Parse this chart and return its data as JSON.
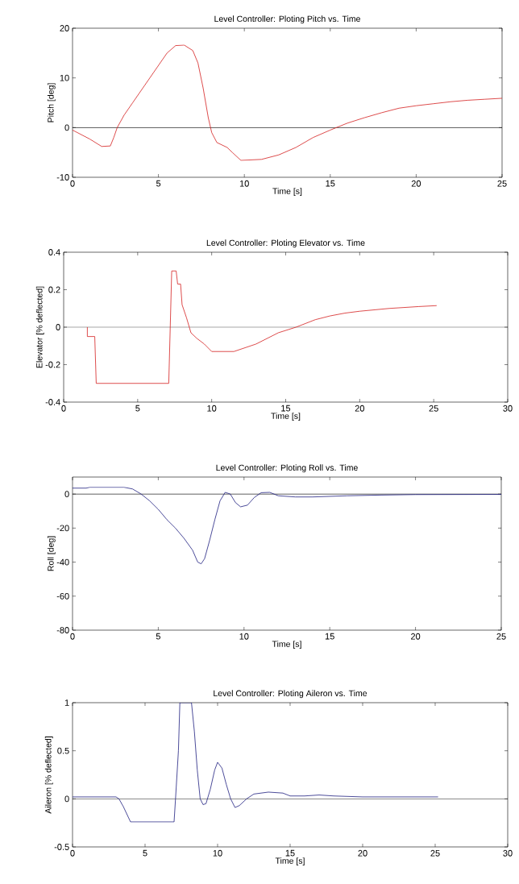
{
  "chart_data": [
    {
      "type": "line",
      "title": "Level Controller: Ploting Pitch vs. Time",
      "xlabel": "Time [s]",
      "ylabel": "Pitch [deg]",
      "xlim": [
        0,
        25
      ],
      "ylim": [
        -10,
        20
      ],
      "xticks": [
        0,
        5,
        10,
        15,
        20,
        25
      ],
      "yticks": [
        -10,
        0,
        10,
        20
      ],
      "grid": false,
      "x": [
        0,
        1,
        1.7,
        2.2,
        2.4,
        2.6,
        3,
        3.5,
        4,
        4.5,
        5,
        5.5,
        6,
        6.5,
        7,
        7.3,
        7.6,
        7.9,
        8.1,
        8.4,
        9,
        9.3,
        9.8,
        11,
        12,
        13,
        14,
        15,
        16,
        17,
        18,
        19,
        20,
        21,
        22,
        23,
        24,
        25
      ],
      "series": [
        {
          "color": "#d42020",
          "values": [
            -0.5,
            -2.3,
            -3.8,
            -3.7,
            -2,
            0,
            2.5,
            5,
            7.5,
            10,
            12.5,
            15,
            16.5,
            16.6,
            15.5,
            13,
            8,
            2,
            -1,
            -3,
            -4,
            -5,
            -6.6,
            -6.4,
            -5.5,
            -4,
            -2,
            -0.5,
            0.9,
            2,
            3,
            3.9,
            4.4,
            4.8,
            5.2,
            5.5,
            5.7,
            5.9
          ]
        }
      ],
      "ref_lines": [
        {
          "axis": "y",
          "value": 0,
          "color": "#000000"
        }
      ]
    },
    {
      "type": "line",
      "title": "Level Controller: Ploting Elevator vs. Time",
      "xlabel": "Time [s]",
      "ylabel": "Elevator [% deflected]",
      "xlim": [
        0,
        30
      ],
      "ylim": [
        -0.4,
        0.4
      ],
      "xticks": [
        0,
        5,
        10,
        15,
        20,
        25,
        30
      ],
      "yticks": [
        -0.4,
        -0.2,
        0,
        0.2,
        0.4
      ],
      "grid": false,
      "x": [
        1.6,
        1.6,
        2.1,
        2.2,
        7.1,
        7.2,
        7.3,
        7.6,
        7.7,
        7.9,
        8.0,
        8.3,
        8.6,
        9,
        9.5,
        10,
        11.5,
        13,
        14.5,
        15.7,
        17,
        18,
        19,
        20,
        22,
        24,
        25.2
      ],
      "series": [
        {
          "color": "#d42020",
          "values": [
            0,
            -0.05,
            -0.05,
            -0.3,
            -0.3,
            0,
            0.3,
            0.3,
            0.23,
            0.23,
            0.12,
            0.05,
            -0.03,
            -0.06,
            -0.09,
            -0.13,
            -0.13,
            -0.09,
            -0.03,
            0,
            0.04,
            0.06,
            0.075,
            0.085,
            0.1,
            0.11,
            0.115
          ]
        }
      ],
      "ref_lines": [
        {
          "axis": "y",
          "value": 0,
          "color": "#000000"
        }
      ]
    },
    {
      "type": "line",
      "title": "Level Controller: Ploting Roll vs. Time",
      "xlabel": "Time [s]",
      "ylabel": "Roll [deg]",
      "xlim": [
        0,
        25
      ],
      "ylim": [
        -80,
        10
      ],
      "xticks": [
        0,
        5,
        10,
        15,
        20,
        25
      ],
      "yticks": [
        -80,
        -60,
        -40,
        -20,
        0
      ],
      "grid": false,
      "x": [
        0,
        0.8,
        1,
        3,
        3.5,
        4,
        4.5,
        5,
        5.5,
        6,
        6.5,
        7,
        7.3,
        7.5,
        7.7,
        8,
        8.3,
        8.6,
        8.9,
        9.2,
        9.5,
        9.8,
        10.2,
        10.6,
        11,
        11.5,
        12,
        13,
        14,
        16,
        18,
        20,
        25
      ],
      "series": [
        {
          "color": "#202080",
          "values": [
            3.5,
            3.5,
            4,
            4,
            3,
            0,
            -4,
            -9,
            -15,
            -20,
            -26,
            -33,
            -40,
            -41,
            -38,
            -27,
            -15,
            -4,
            1,
            0,
            -5,
            -7.5,
            -6.5,
            -2,
            0.8,
            1,
            -1,
            -1.7,
            -1.7,
            -1,
            -0.6,
            -0.3,
            -0.2
          ]
        }
      ],
      "ref_lines": [
        {
          "axis": "y",
          "value": 0,
          "color": "#000000"
        }
      ]
    },
    {
      "type": "line",
      "title": "Level Controller: Ploting Aileron vs. Time",
      "xlabel": "Time [s]",
      "ylabel": "Aileron [% deflected]",
      "xlim": [
        0,
        30
      ],
      "ylim": [
        -0.5,
        1
      ],
      "xticks": [
        0,
        5,
        10,
        15,
        20,
        25,
        30
      ],
      "yticks": [
        -0.5,
        0,
        0.5,
        1
      ],
      "grid": false,
      "x": [
        0,
        3,
        3.2,
        3.5,
        4,
        7,
        7.1,
        7.3,
        7.4,
        8.2,
        8.4,
        8.6,
        8.8,
        9,
        9.2,
        9.5,
        9.8,
        10,
        10.3,
        10.6,
        10.9,
        11.2,
        11.5,
        12,
        12.5,
        13.5,
        14.5,
        15,
        16,
        17,
        18,
        20,
        25.2
      ],
      "series": [
        {
          "color": "#202080",
          "values": [
            0.02,
            0.02,
            0,
            -0.08,
            -0.24,
            -0.24,
            0,
            0.5,
            1,
            1,
            0.7,
            0.3,
            0,
            -0.06,
            -0.05,
            0.1,
            0.3,
            0.38,
            0.32,
            0.15,
            0,
            -0.09,
            -0.07,
            0,
            0.05,
            0.07,
            0.06,
            0.03,
            0.03,
            0.04,
            0.03,
            0.02,
            0.02
          ]
        }
      ],
      "ref_lines": [
        {
          "axis": "y",
          "value": 0,
          "color": "#000000"
        }
      ]
    }
  ]
}
